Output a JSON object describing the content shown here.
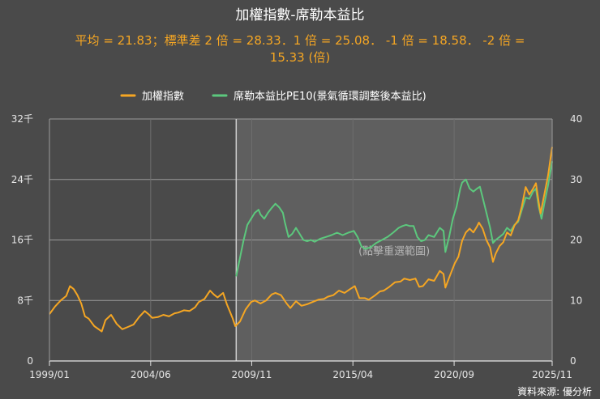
{
  "chart_data": {
    "type": "line",
    "title": "加權指數-席勒本益比",
    "subtitle_line1": "平均 = 21.83；標準差 2 倍 = 28.33．1 倍 = 25.08．  -1 倍 = 18.58．  -2 倍 =",
    "subtitle_line2": "15.33 (倍)",
    "source": "資料來源: 優分析",
    "selection_label": "(點擊重選範圍)",
    "selection_start": 2009.0,
    "x_range": [
      1999.0,
      2025.92
    ],
    "x_ticks": [
      {
        "value": 1999.0,
        "label": "1999/01"
      },
      {
        "value": 2004.42,
        "label": "2004/06"
      },
      {
        "value": 2009.83,
        "label": "2009/11"
      },
      {
        "value": 2015.25,
        "label": "2015/04"
      },
      {
        "value": 2020.67,
        "label": "2020/09"
      },
      {
        "value": 2025.92,
        "label": "2025/11"
      }
    ],
    "y_left": {
      "min": 0,
      "max": 32000,
      "ticks": [
        {
          "value": 0,
          "label": "0"
        },
        {
          "value": 8000,
          "label": "8千"
        },
        {
          "value": 16000,
          "label": "16千"
        },
        {
          "value": 24000,
          "label": "24千"
        },
        {
          "value": 32000,
          "label": "32千"
        }
      ]
    },
    "y_right": {
      "min": 0,
      "max": 40,
      "ticks": [
        {
          "value": 0,
          "label": "0"
        },
        {
          "value": 10,
          "label": "10"
        },
        {
          "value": 20,
          "label": "20"
        },
        {
          "value": 30,
          "label": "30"
        },
        {
          "value": 40,
          "label": "40"
        }
      ]
    },
    "series": [
      {
        "name": "加權指數",
        "axis": "left",
        "color": "#f5a623",
        "points": [
          [
            1999.0,
            6200
          ],
          [
            1999.3,
            7200
          ],
          [
            1999.6,
            8000
          ],
          [
            1999.9,
            8600
          ],
          [
            2000.1,
            9900
          ],
          [
            2000.3,
            9500
          ],
          [
            2000.5,
            8700
          ],
          [
            2000.7,
            7600
          ],
          [
            2000.9,
            5900
          ],
          [
            2001.1,
            5600
          ],
          [
            2001.4,
            4600
          ],
          [
            2001.8,
            3900
          ],
          [
            2002.0,
            5400
          ],
          [
            2002.3,
            6100
          ],
          [
            2002.6,
            4900
          ],
          [
            2002.9,
            4200
          ],
          [
            2003.2,
            4500
          ],
          [
            2003.5,
            4800
          ],
          [
            2003.8,
            5800
          ],
          [
            2004.1,
            6600
          ],
          [
            2004.3,
            6200
          ],
          [
            2004.5,
            5700
          ],
          [
            2004.8,
            5800
          ],
          [
            2005.1,
            6100
          ],
          [
            2005.4,
            5900
          ],
          [
            2005.7,
            6300
          ],
          [
            2005.9,
            6400
          ],
          [
            2006.2,
            6700
          ],
          [
            2006.5,
            6600
          ],
          [
            2006.8,
            7100
          ],
          [
            2007.0,
            7800
          ],
          [
            2007.3,
            8200
          ],
          [
            2007.6,
            9300
          ],
          [
            2007.8,
            8800
          ],
          [
            2008.0,
            8400
          ],
          [
            2008.3,
            9000
          ],
          [
            2008.5,
            7500
          ],
          [
            2008.8,
            5700
          ],
          [
            2008.95,
            4600
          ],
          [
            2009.2,
            5200
          ],
          [
            2009.5,
            6800
          ],
          [
            2009.8,
            7800
          ],
          [
            2010.0,
            8000
          ],
          [
            2010.3,
            7600
          ],
          [
            2010.6,
            8000
          ],
          [
            2010.9,
            8800
          ],
          [
            2011.1,
            9000
          ],
          [
            2011.4,
            8700
          ],
          [
            2011.7,
            7600
          ],
          [
            2011.9,
            7000
          ],
          [
            2012.2,
            7900
          ],
          [
            2012.5,
            7300
          ],
          [
            2012.8,
            7500
          ],
          [
            2013.1,
            7800
          ],
          [
            2013.4,
            8100
          ],
          [
            2013.7,
            8200
          ],
          [
            2013.9,
            8500
          ],
          [
            2014.2,
            8700
          ],
          [
            2014.5,
            9300
          ],
          [
            2014.8,
            9000
          ],
          [
            2015.1,
            9500
          ],
          [
            2015.35,
            9900
          ],
          [
            2015.6,
            8300
          ],
          [
            2015.9,
            8300
          ],
          [
            2016.1,
            8100
          ],
          [
            2016.4,
            8600
          ],
          [
            2016.7,
            9200
          ],
          [
            2016.9,
            9300
          ],
          [
            2017.2,
            9800
          ],
          [
            2017.5,
            10400
          ],
          [
            2017.8,
            10500
          ],
          [
            2018.0,
            10900
          ],
          [
            2018.3,
            10700
          ],
          [
            2018.6,
            10900
          ],
          [
            2018.8,
            9800
          ],
          [
            2019.0,
            9900
          ],
          [
            2019.3,
            10800
          ],
          [
            2019.6,
            10600
          ],
          [
            2019.9,
            11900
          ],
          [
            2020.1,
            11500
          ],
          [
            2020.2,
            9700
          ],
          [
            2020.4,
            11000
          ],
          [
            2020.7,
            12900
          ],
          [
            2020.9,
            13800
          ],
          [
            2021.1,
            15900
          ],
          [
            2021.3,
            17000
          ],
          [
            2021.5,
            17500
          ],
          [
            2021.7,
            17000
          ],
          [
            2021.9,
            17800
          ],
          [
            2022.0,
            18300
          ],
          [
            2022.2,
            17500
          ],
          [
            2022.4,
            16000
          ],
          [
            2022.6,
            15000
          ],
          [
            2022.75,
            13100
          ],
          [
            2022.9,
            14200
          ],
          [
            2023.1,
            15200
          ],
          [
            2023.3,
            15700
          ],
          [
            2023.5,
            17000
          ],
          [
            2023.7,
            16600
          ],
          [
            2023.9,
            17900
          ],
          [
            2024.1,
            18600
          ],
          [
            2024.3,
            20500
          ],
          [
            2024.5,
            23000
          ],
          [
            2024.7,
            22000
          ],
          [
            2024.9,
            22800
          ],
          [
            2025.05,
            23500
          ],
          [
            2025.2,
            21000
          ],
          [
            2025.3,
            19500
          ],
          [
            2025.5,
            22000
          ],
          [
            2025.7,
            24500
          ],
          [
            2025.92,
            28300
          ]
        ]
      },
      {
        "name": "席勒本益比PE10(景氣循環調整後本益比)",
        "axis": "right",
        "color": "#5cc87d",
        "points": [
          [
            2009.0,
            14.0
          ],
          [
            2009.2,
            17.0
          ],
          [
            2009.4,
            20.0
          ],
          [
            2009.6,
            22.5
          ],
          [
            2009.8,
            23.5
          ],
          [
            2010.0,
            24.5
          ],
          [
            2010.2,
            25.0
          ],
          [
            2010.3,
            24.2
          ],
          [
            2010.5,
            23.5
          ],
          [
            2010.7,
            24.5
          ],
          [
            2010.9,
            25.3
          ],
          [
            2011.1,
            26.0
          ],
          [
            2011.3,
            25.4
          ],
          [
            2011.5,
            24.5
          ],
          [
            2011.6,
            23.0
          ],
          [
            2011.8,
            20.5
          ],
          [
            2012.0,
            21.0
          ],
          [
            2012.2,
            22.0
          ],
          [
            2012.4,
            21.0
          ],
          [
            2012.6,
            20.0
          ],
          [
            2012.8,
            19.8
          ],
          [
            2013.0,
            20.0
          ],
          [
            2013.2,
            19.7
          ],
          [
            2013.5,
            20.2
          ],
          [
            2013.8,
            20.5
          ],
          [
            2014.1,
            20.8
          ],
          [
            2014.4,
            21.2
          ],
          [
            2014.7,
            20.8
          ],
          [
            2015.0,
            21.2
          ],
          [
            2015.3,
            21.5
          ],
          [
            2015.5,
            20.5
          ],
          [
            2015.7,
            19.0
          ],
          [
            2015.9,
            18.5
          ],
          [
            2016.2,
            18.8
          ],
          [
            2016.5,
            19.5
          ],
          [
            2016.8,
            20.0
          ],
          [
            2017.1,
            20.5
          ],
          [
            2017.4,
            21.2
          ],
          [
            2017.7,
            22.0
          ],
          [
            2017.9,
            22.3
          ],
          [
            2018.1,
            22.5
          ],
          [
            2018.3,
            22.3
          ],
          [
            2018.5,
            22.3
          ],
          [
            2018.7,
            20.5
          ],
          [
            2018.9,
            19.8
          ],
          [
            2019.1,
            20.0
          ],
          [
            2019.3,
            20.8
          ],
          [
            2019.6,
            20.5
          ],
          [
            2019.9,
            22.0
          ],
          [
            2020.1,
            21.5
          ],
          [
            2020.2,
            18.0
          ],
          [
            2020.4,
            20.5
          ],
          [
            2020.6,
            23.5
          ],
          [
            2020.8,
            25.5
          ],
          [
            2021.0,
            28.5
          ],
          [
            2021.1,
            29.5
          ],
          [
            2021.3,
            30.0
          ],
          [
            2021.5,
            28.5
          ],
          [
            2021.7,
            28.0
          ],
          [
            2021.9,
            28.5
          ],
          [
            2022.05,
            28.8
          ],
          [
            2022.2,
            27.0
          ],
          [
            2022.4,
            24.5
          ],
          [
            2022.6,
            22.0
          ],
          [
            2022.75,
            19.5
          ],
          [
            2022.9,
            20.0
          ],
          [
            2023.1,
            20.5
          ],
          [
            2023.3,
            21.0
          ],
          [
            2023.5,
            22.0
          ],
          [
            2023.7,
            21.5
          ],
          [
            2023.9,
            22.5
          ],
          [
            2024.1,
            23.0
          ],
          [
            2024.3,
            25.0
          ],
          [
            2024.5,
            27.0
          ],
          [
            2024.7,
            26.8
          ],
          [
            2024.9,
            28.0
          ],
          [
            2025.05,
            28.5
          ],
          [
            2025.2,
            25.5
          ],
          [
            2025.35,
            23.5
          ],
          [
            2025.5,
            26.0
          ],
          [
            2025.7,
            29.0
          ],
          [
            2025.92,
            33.0
          ]
        ]
      }
    ]
  }
}
